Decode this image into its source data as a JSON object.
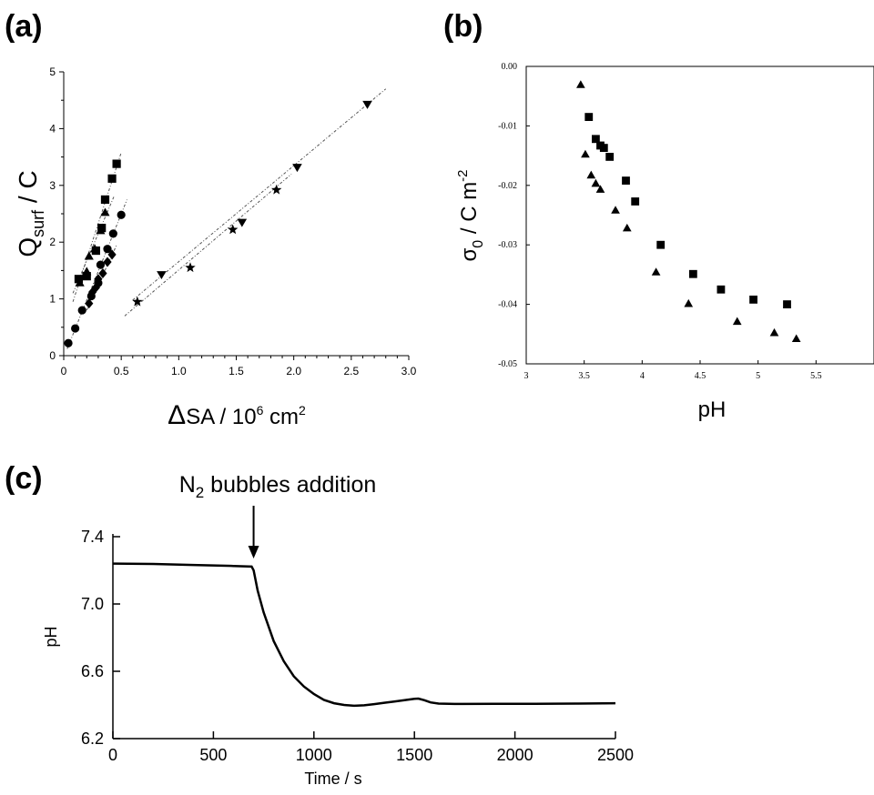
{
  "chart_data": [
    {
      "panel": "(a)",
      "type": "scatter",
      "xlabel": "ΔSA / 10⁶ cm²",
      "ylabel": "Qsurf / C",
      "xlim": [
        0,
        3.0
      ],
      "ylim": [
        0,
        5
      ],
      "xticks": [
        "0",
        "0.5",
        "1.0",
        "1.5",
        "2.0",
        "2.5",
        "3.0"
      ],
      "yticks": [
        "0",
        "1",
        "2",
        "3",
        "4",
        "5"
      ],
      "grid": false,
      "series": [
        {
          "marker": "square",
          "points": [
            [
              0.13,
              1.35
            ],
            [
              0.2,
              1.4
            ],
            [
              0.28,
              1.85
            ],
            [
              0.33,
              2.25
            ],
            [
              0.36,
              2.75
            ],
            [
              0.42,
              3.12
            ],
            [
              0.46,
              3.38
            ]
          ],
          "fit": [
            [
              0.08,
              0.95
            ],
            [
              0.5,
              3.58
            ]
          ]
        },
        {
          "marker": "triangle",
          "points": [
            [
              0.14,
              1.28
            ],
            [
              0.2,
              1.48
            ],
            [
              0.22,
              1.75
            ],
            [
              0.27,
              1.88
            ],
            [
              0.32,
              2.2
            ],
            [
              0.36,
              2.52
            ]
          ],
          "fit": [
            [
              0.08,
              1.1
            ],
            [
              0.44,
              2.82
            ]
          ]
        },
        {
          "marker": "circle",
          "points": [
            [
              0.04,
              0.22
            ],
            [
              0.1,
              0.48
            ],
            [
              0.16,
              0.8
            ],
            [
              0.24,
              1.05
            ],
            [
              0.3,
              1.28
            ],
            [
              0.32,
              1.6
            ],
            [
              0.38,
              1.88
            ],
            [
              0.43,
              2.15
            ],
            [
              0.5,
              2.48
            ]
          ],
          "fit": [
            [
              0.03,
              0.12
            ],
            [
              0.55,
              2.75
            ]
          ]
        },
        {
          "marker": "diamond",
          "points": [
            [
              0.22,
              0.92
            ],
            [
              0.25,
              1.12
            ],
            [
              0.28,
              1.2
            ],
            [
              0.3,
              1.35
            ],
            [
              0.34,
              1.45
            ],
            [
              0.38,
              1.65
            ],
            [
              0.42,
              1.78
            ]
          ],
          "fit": [
            [
              0.2,
              0.8
            ],
            [
              0.46,
              1.95
            ]
          ]
        },
        {
          "marker": "inverted-triangle",
          "points": [
            [
              0.85,
              1.43
            ],
            [
              1.55,
              2.35
            ],
            [
              2.03,
              3.32
            ],
            [
              2.64,
              4.43
            ]
          ],
          "fit": [
            [
              0.6,
              0.98
            ],
            [
              2.8,
              4.7
            ]
          ]
        },
        {
          "marker": "star",
          "points": [
            [
              0.64,
              0.95
            ],
            [
              1.1,
              1.55
            ],
            [
              1.47,
              2.22
            ],
            [
              1.85,
              2.92
            ]
          ],
          "fit": [
            [
              0.53,
              0.7
            ],
            [
              1.98,
              3.2
            ]
          ]
        }
      ]
    },
    {
      "panel": "(b)",
      "type": "scatter",
      "xlabel": "pH",
      "ylabel": "σ0 / C m-2",
      "xlim": [
        3,
        6
      ],
      "ylim": [
        -0.05,
        0.0
      ],
      "xticks": [
        "3",
        "3.5",
        "4",
        "4.5",
        "5",
        "5.5"
      ],
      "yticks": [
        "0.00",
        "-0.01",
        "-0.02",
        "-0.03",
        "-0.04",
        "-0.05"
      ],
      "grid": false,
      "series": [
        {
          "marker": "square",
          "points": [
            [
              3.54,
              -0.0085
            ],
            [
              3.6,
              -0.0122
            ],
            [
              3.64,
              -0.0133
            ],
            [
              3.67,
              -0.0137
            ],
            [
              3.72,
              -0.0152
            ],
            [
              3.86,
              -0.0192
            ],
            [
              3.94,
              -0.0227
            ],
            [
              4.16,
              -0.03
            ],
            [
              4.44,
              -0.0349
            ],
            [
              4.68,
              -0.0375
            ],
            [
              4.96,
              -0.0392
            ],
            [
              5.25,
              -0.04
            ]
          ]
        },
        {
          "marker": "triangle",
          "points": [
            [
              3.47,
              -0.0031
            ],
            [
              3.51,
              -0.0148
            ],
            [
              3.56,
              -0.0183
            ],
            [
              3.6,
              -0.0197
            ],
            [
              3.64,
              -0.0207
            ],
            [
              3.77,
              -0.0242
            ],
            [
              3.87,
              -0.0272
            ],
            [
              4.12,
              -0.0346
            ],
            [
              4.4,
              -0.0399
            ],
            [
              4.82,
              -0.0429
            ],
            [
              5.14,
              -0.0448
            ],
            [
              5.33,
              -0.0458
            ]
          ]
        }
      ]
    },
    {
      "panel": "(c)",
      "type": "line",
      "title": "N2 bubbles addition",
      "xlabel": "Time / s",
      "ylabel": "pH",
      "xlim": [
        0,
        2500
      ],
      "ylim": [
        6.2,
        7.4
      ],
      "xticks": [
        "0",
        "500",
        "1000",
        "1500",
        "2000",
        "2500"
      ],
      "yticks": [
        "6.2",
        "6.6",
        "7.0",
        "7.4"
      ],
      "grid": false,
      "annotation": {
        "text": "N2 bubbles addition",
        "x": 700
      },
      "series": [
        {
          "points": [
            [
              0,
              7.24
            ],
            [
              200,
              7.238
            ],
            [
              400,
              7.232
            ],
            [
              600,
              7.226
            ],
            [
              690,
              7.222
            ],
            [
              700,
              7.2
            ],
            [
              720,
              7.08
            ],
            [
              750,
              6.95
            ],
            [
              800,
              6.78
            ],
            [
              850,
              6.66
            ],
            [
              900,
              6.57
            ],
            [
              950,
              6.51
            ],
            [
              1000,
              6.465
            ],
            [
              1050,
              6.43
            ],
            [
              1100,
              6.41
            ],
            [
              1150,
              6.4
            ],
            [
              1200,
              6.395
            ],
            [
              1250,
              6.398
            ],
            [
              1300,
              6.405
            ],
            [
              1350,
              6.413
            ],
            [
              1400,
              6.42
            ],
            [
              1450,
              6.428
            ],
            [
              1500,
              6.436
            ],
            [
              1520,
              6.438
            ],
            [
              1550,
              6.428
            ],
            [
              1580,
              6.415
            ],
            [
              1620,
              6.408
            ],
            [
              1700,
              6.406
            ],
            [
              1900,
              6.407
            ],
            [
              2100,
              6.407
            ],
            [
              2300,
              6.408
            ],
            [
              2500,
              6.41
            ]
          ]
        }
      ]
    }
  ],
  "labels": {
    "a": "(a)",
    "b": "(b)",
    "c": "(c)",
    "a_x_delta": "Δ",
    "a_x_rest": "SA / 10",
    "a_x_exp": "6",
    "a_x_unit": " cm",
    "a_x_unit_exp": "2",
    "a_y_main": "Q",
    "a_y_sub": "surf",
    "a_y_rest": " / C",
    "b_y_main": "σ",
    "b_y_sub": "0",
    "b_y_rest": " / C m",
    "b_y_exp": "-2",
    "b_x": "pH",
    "c_annot_main": "N",
    "c_annot_sub": "2",
    "c_annot_rest": " bubbles addition",
    "c_x": "Time / s",
    "c_y": "pH"
  }
}
